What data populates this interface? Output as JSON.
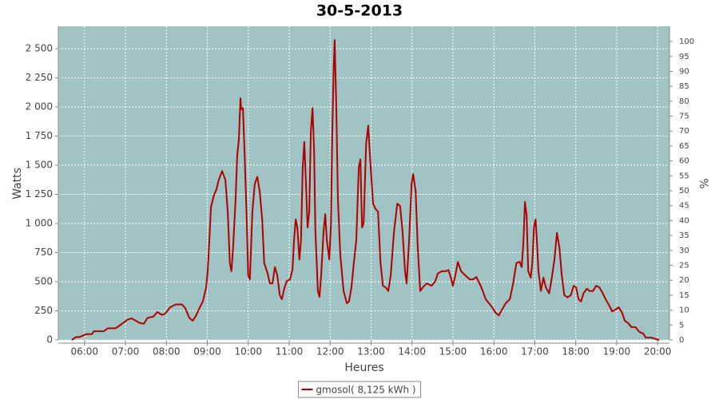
{
  "chart_data": {
    "type": "line",
    "title": "30-5-2013",
    "xlabel": "Heures",
    "ylabel": "Watts",
    "y2label": "%",
    "plot_background": "#a0c4c4",
    "grid": true,
    "xlim": [
      5.36,
      20.29
    ],
    "xticks": [
      {
        "value": 6,
        "label": "06:00"
      },
      {
        "value": 7,
        "label": "07:00"
      },
      {
        "value": 8,
        "label": "08:00"
      },
      {
        "value": 9,
        "label": "09:00"
      },
      {
        "value": 10,
        "label": "10:00"
      },
      {
        "value": 11,
        "label": "11:00"
      },
      {
        "value": 12,
        "label": "12:00"
      },
      {
        "value": 13,
        "label": "13:00"
      },
      {
        "value": 14,
        "label": "14:00"
      },
      {
        "value": 15,
        "label": "15:00"
      },
      {
        "value": 16,
        "label": "16:00"
      },
      {
        "value": 17,
        "label": "17:00"
      },
      {
        "value": 18,
        "label": "18:00"
      },
      {
        "value": 19,
        "label": "19:00"
      },
      {
        "value": 20,
        "label": "20:00"
      }
    ],
    "ylim": [
      0,
      2692
    ],
    "yticks": [
      0,
      250,
      500,
      750,
      {
        "value": 1000,
        "label": "1 000"
      },
      {
        "value": 1250,
        "label": "1 250"
      },
      {
        "value": 1500,
        "label": "1 500"
      },
      {
        "value": 1750,
        "label": "1 750"
      },
      {
        "value": 2000,
        "label": "2 000"
      },
      {
        "value": 2250,
        "label": "2 250"
      },
      {
        "value": 2500,
        "label": "2 500"
      }
    ],
    "y2lim": [
      0,
      105.1
    ],
    "y2ticks": [
      0,
      5,
      10,
      15,
      20,
      25,
      30,
      35,
      40,
      45,
      50,
      55,
      60,
      65,
      70,
      75,
      80,
      85,
      90,
      95,
      100
    ],
    "x": [
      5.69,
      5.79,
      5.88,
      6.04,
      6.18,
      6.23,
      6.47,
      6.57,
      6.76,
      6.86,
      6.96,
      7.05,
      7.15,
      7.25,
      7.35,
      7.45,
      7.54,
      7.68,
      7.78,
      7.89,
      7.97,
      8.09,
      8.23,
      8.38,
      8.46,
      8.56,
      8.64,
      8.71,
      8.81,
      8.89,
      8.97,
      9.01,
      9.05,
      9.09,
      9.16,
      9.22,
      9.28,
      9.36,
      9.44,
      9.5,
      9.55,
      9.59,
      9.63,
      9.69,
      9.73,
      9.77,
      9.81,
      9.83,
      9.87,
      9.91,
      9.96,
      10.0,
      10.04,
      10.1,
      10.16,
      10.22,
      10.28,
      10.34,
      10.39,
      10.47,
      10.53,
      10.59,
      10.65,
      10.71,
      10.77,
      10.82,
      10.88,
      10.94,
      11.02,
      11.08,
      11.12,
      11.16,
      11.2,
      11.25,
      11.29,
      11.33,
      11.37,
      11.41,
      11.45,
      11.49,
      11.53,
      11.57,
      11.61,
      11.64,
      11.7,
      11.74,
      11.78,
      11.84,
      11.88,
      11.92,
      11.98,
      12.02,
      12.05,
      12.09,
      12.11,
      12.15,
      12.19,
      12.25,
      12.33,
      12.41,
      12.46,
      12.52,
      12.58,
      12.64,
      12.7,
      12.74,
      12.78,
      12.82,
      12.88,
      12.93,
      12.99,
      13.05,
      13.11,
      13.17,
      13.23,
      13.29,
      13.36,
      13.42,
      13.48,
      13.56,
      13.64,
      13.71,
      13.77,
      13.83,
      13.87,
      13.93,
      13.99,
      14.03,
      14.09,
      14.14,
      14.2,
      14.26,
      14.36,
      14.48,
      14.57,
      14.63,
      14.73,
      14.83,
      14.89,
      14.95,
      15.0,
      15.06,
      15.12,
      15.2,
      15.3,
      15.41,
      15.49,
      15.57,
      15.65,
      15.73,
      15.8,
      15.88,
      15.96,
      16.04,
      16.12,
      16.2,
      16.29,
      16.39,
      16.47,
      16.55,
      16.63,
      16.68,
      16.72,
      16.76,
      16.8,
      16.84,
      16.9,
      16.94,
      16.98,
      17.02,
      17.05,
      17.09,
      17.15,
      17.21,
      17.27,
      17.35,
      17.41,
      17.48,
      17.54,
      17.6,
      17.66,
      17.72,
      17.8,
      17.88,
      17.95,
      18.01,
      18.07,
      18.13,
      18.19,
      18.27,
      18.34,
      18.42,
      18.5,
      18.58,
      18.66,
      18.73,
      18.81,
      18.89,
      18.97,
      19.05,
      19.13,
      19.2,
      19.28,
      19.36,
      19.46,
      19.55,
      19.65,
      19.71,
      19.85,
      19.98,
      20.04
    ],
    "series": [
      {
        "name": "gmosol( 8,125 kWh )",
        "color": "#b00000",
        "values": [
          0,
          25,
          25,
          50,
          50,
          75,
          75,
          100,
          100,
          125,
          150,
          175,
          185,
          165,
          145,
          140,
          190,
          200,
          240,
          215,
          225,
          280,
          305,
          305,
          275,
          190,
          165,
          200,
          275,
          330,
          450,
          590,
          860,
          1140,
          1240,
          1290,
          1375,
          1450,
          1375,
          1100,
          660,
          590,
          795,
          1205,
          1580,
          1720,
          2075,
          1980,
          1990,
          1615,
          1070,
          555,
          520,
          1100,
          1340,
          1400,
          1275,
          1035,
          660,
          575,
          485,
          485,
          625,
          555,
          385,
          350,
          440,
          505,
          520,
          600,
          860,
          1035,
          965,
          690,
          860,
          1480,
          1700,
          1340,
          965,
          1100,
          1790,
          1990,
          1615,
          930,
          420,
          370,
          555,
          930,
          1080,
          860,
          690,
          1000,
          1720,
          2370,
          2575,
          2025,
          1205,
          725,
          420,
          315,
          330,
          450,
          660,
          860,
          1480,
          1550,
          965,
          1000,
          1685,
          1840,
          1480,
          1170,
          1125,
          1100,
          660,
          465,
          450,
          420,
          555,
          930,
          1170,
          1150,
          930,
          590,
          485,
          860,
          1340,
          1425,
          1275,
          795,
          420,
          450,
          485,
          465,
          505,
          570,
          590,
          590,
          600,
          535,
          465,
          555,
          670,
          590,
          555,
          520,
          520,
          540,
          485,
          420,
          350,
          315,
          280,
          235,
          210,
          260,
          315,
          350,
          485,
          660,
          670,
          625,
          830,
          1185,
          1070,
          590,
          535,
          660,
          965,
          1035,
          860,
          590,
          420,
          535,
          450,
          400,
          520,
          690,
          920,
          795,
          555,
          385,
          365,
          385,
          465,
          450,
          350,
          330,
          400,
          440,
          420,
          420,
          465,
          450,
          400,
          350,
          300,
          245,
          260,
          280,
          235,
          165,
          145,
          110,
          110,
          70,
          55,
          20,
          20,
          5,
          0
        ]
      }
    ]
  }
}
